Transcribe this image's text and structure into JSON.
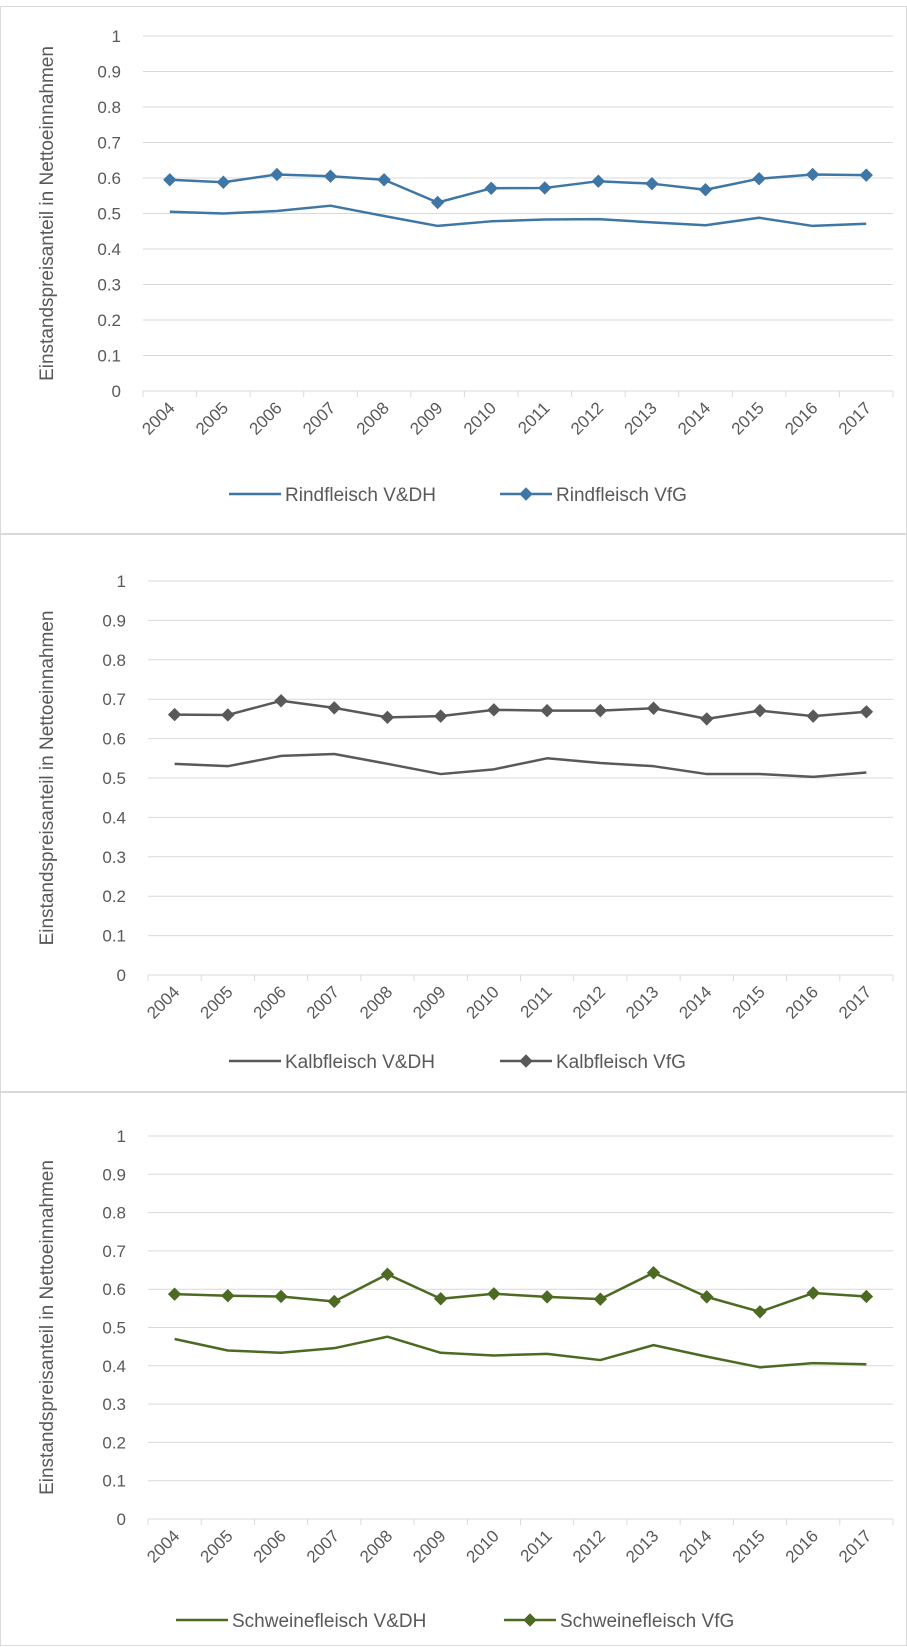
{
  "chart_data": [
    {
      "type": "line",
      "ylabel": "Einstandspreisanteil in Nettoeinnahmen",
      "ylim": [
        0,
        1
      ],
      "yticks": [
        "0",
        "0.1",
        "0.2",
        "0.3",
        "0.4",
        "0.5",
        "0.6",
        "0.7",
        "0.8",
        "0.9",
        "1"
      ],
      "categories": [
        "2004",
        "2005",
        "2006",
        "2007",
        "2008",
        "2009",
        "2010",
        "2011",
        "2012",
        "2013",
        "2014",
        "2015",
        "2016",
        "2017"
      ],
      "grid": true,
      "legend": "bottom",
      "series": [
        {
          "name": "Rindfleisch V&DH",
          "color": "#3e76a5",
          "marker": "none",
          "values": [
            0.505,
            0.5,
            0.507,
            0.522,
            0.493,
            0.465,
            0.478,
            0.483,
            0.484,
            0.475,
            0.467,
            0.488,
            0.465,
            0.471
          ]
        },
        {
          "name": "Rindfleisch VfG",
          "color": "#3e76a5",
          "marker": "diamond",
          "values": [
            0.595,
            0.588,
            0.61,
            0.605,
            0.595,
            0.531,
            0.571,
            0.572,
            0.591,
            0.584,
            0.567,
            0.598,
            0.61,
            0.608
          ]
        }
      ]
    },
    {
      "type": "line",
      "ylabel": "Einstandspreisanteil in Nettoeinnahmen",
      "ylim": [
        0,
        1
      ],
      "yticks": [
        "0",
        "0.1",
        "0.2",
        "0.3",
        "0.4",
        "0.5",
        "0.6",
        "0.7",
        "0.8",
        "0.9",
        "1"
      ],
      "categories": [
        "2004",
        "2005",
        "2006",
        "2007",
        "2008",
        "2009",
        "2010",
        "2011",
        "2012",
        "2013",
        "2014",
        "2015",
        "2016",
        "2017"
      ],
      "grid": true,
      "legend": "bottom",
      "series": [
        {
          "name": "Kalbfleisch V&DH",
          "color": "#595959",
          "marker": "none",
          "values": [
            0.536,
            0.53,
            0.556,
            0.561,
            0.536,
            0.51,
            0.522,
            0.55,
            0.538,
            0.53,
            0.51,
            0.51,
            0.503,
            0.514
          ]
        },
        {
          "name": "Kalbfleisch VfG",
          "color": "#595959",
          "marker": "diamond",
          "values": [
            0.661,
            0.66,
            0.696,
            0.678,
            0.654,
            0.657,
            0.673,
            0.671,
            0.671,
            0.677,
            0.65,
            0.671,
            0.657,
            0.668
          ]
        }
      ]
    },
    {
      "type": "line",
      "ylabel": "Einstandspreisanteil in Nettoeinnahmen",
      "ylim": [
        0,
        1
      ],
      "yticks": [
        "0",
        "0.1",
        "0.2",
        "0.3",
        "0.4",
        "0.5",
        "0.6",
        "0.7",
        "0.8",
        "0.9",
        "1"
      ],
      "categories": [
        "2004",
        "2005",
        "2006",
        "2007",
        "2008",
        "2009",
        "2010",
        "2011",
        "2012",
        "2013",
        "2014",
        "2015",
        "2016",
        "2017"
      ],
      "grid": true,
      "legend": "bottom",
      "series": [
        {
          "name": "Schweinefleisch V&DH",
          "color": "#4c6a22",
          "marker": "none",
          "values": [
            0.47,
            0.44,
            0.434,
            0.446,
            0.476,
            0.434,
            0.427,
            0.431,
            0.415,
            0.454,
            0.424,
            0.396,
            0.407,
            0.404
          ]
        },
        {
          "name": "Schweinefleisch VfG",
          "color": "#4c6a22",
          "marker": "diamond",
          "values": [
            0.587,
            0.583,
            0.581,
            0.568,
            0.639,
            0.575,
            0.588,
            0.58,
            0.574,
            0.643,
            0.58,
            0.541,
            0.59,
            0.581
          ]
        }
      ]
    }
  ]
}
